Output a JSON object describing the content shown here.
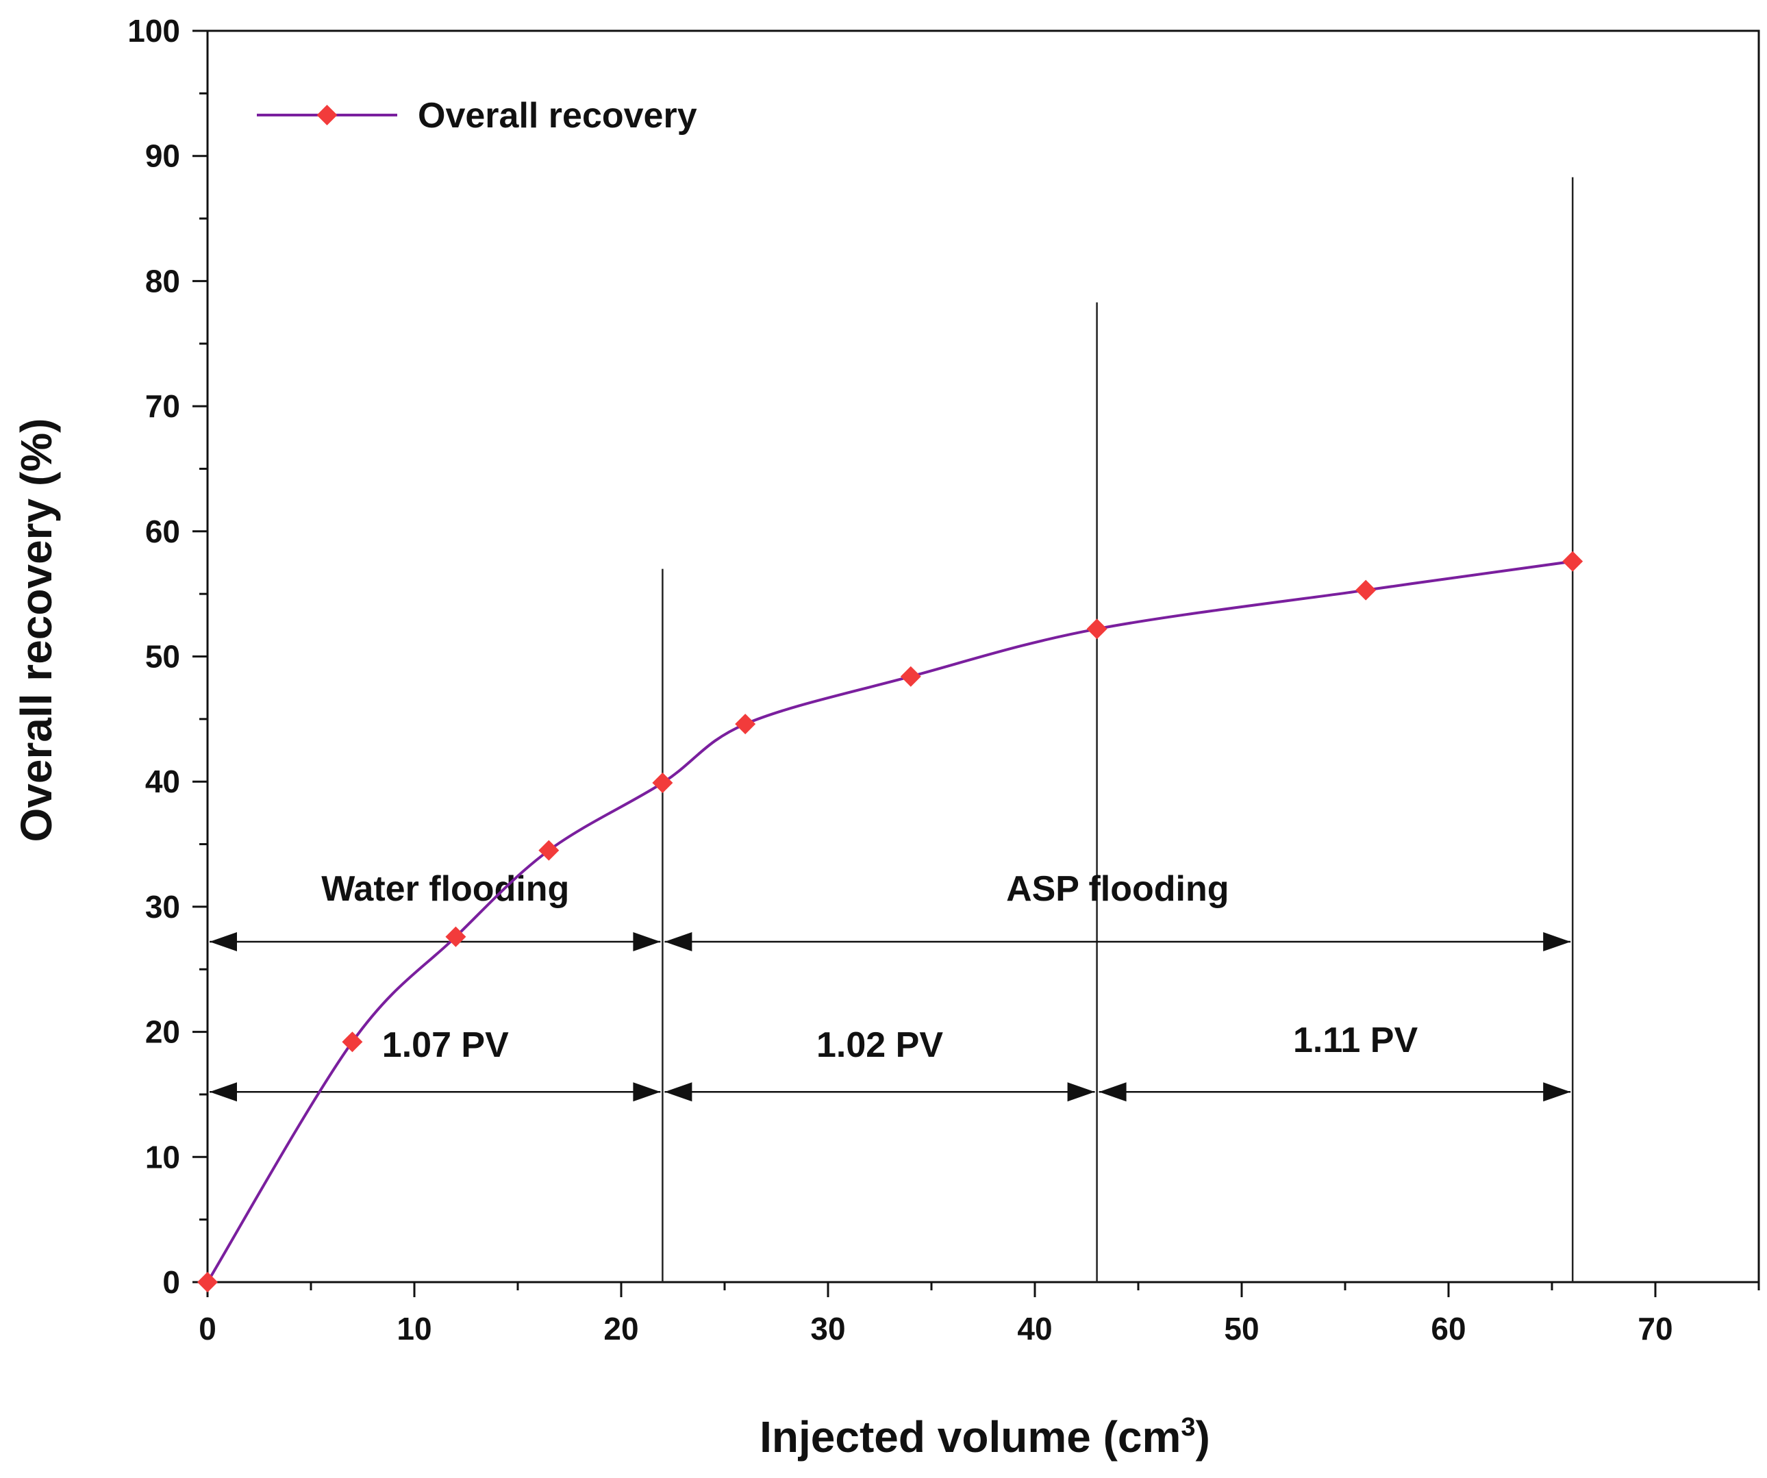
{
  "chart_data": {
    "type": "line",
    "title": "",
    "xlabel": "Injected volume (cm",
    "xlabel_sup": "3",
    "xlabel_end": ")",
    "ylabel": "Overall recovery (%)",
    "xlim": [
      0,
      75
    ],
    "ylim": [
      0,
      100
    ],
    "x_ticks": [
      0,
      10,
      20,
      30,
      40,
      50,
      60,
      70
    ],
    "y_ticks": [
      0,
      10,
      20,
      30,
      40,
      50,
      60,
      70,
      80,
      90,
      100
    ],
    "grid": false,
    "legend": {
      "position": "top-left",
      "entries": [
        "Overall recovery"
      ]
    },
    "series": [
      {
        "name": "Overall recovery",
        "line_color": "#7a1f9e",
        "marker_color": "#f23b3b",
        "marker": "diamond",
        "x": [
          0,
          7,
          12,
          16.5,
          22,
          26,
          34,
          43,
          56,
          66
        ],
        "y": [
          0,
          19.2,
          27.6,
          34.5,
          39.9,
          44.6,
          48.4,
          52.2,
          55.3,
          57.6
        ]
      }
    ],
    "vertical_lines": [
      {
        "x": 22,
        "y_top": 57
      },
      {
        "x": 43,
        "y_top": 78.3
      },
      {
        "x": 66,
        "y_top": 88.3
      }
    ],
    "annotations": [
      {
        "text": "Water flooding",
        "x": 11.5,
        "y": 30.5,
        "arrow": {
          "x_from": 0,
          "x_to": 22,
          "y": 27.2
        }
      },
      {
        "text": "ASP flooding",
        "x": 44,
        "y": 30.5,
        "arrow": {
          "x_from": 22,
          "x_to": 66,
          "y": 27.2
        }
      },
      {
        "text": "1.07 PV",
        "x": 11.5,
        "y": 18.0,
        "arrow": {
          "x_from": 0,
          "x_to": 22,
          "y": 15.2
        }
      },
      {
        "text": "1.02 PV",
        "x": 32.5,
        "y": 18.0,
        "arrow": {
          "x_from": 22,
          "x_to": 43,
          "y": 15.2
        }
      },
      {
        "text": "1.11 PV",
        "x": 55.5,
        "y": 18.4,
        "arrow": {
          "x_from": 43,
          "x_to": 66,
          "y": 15.2
        }
      }
    ]
  }
}
